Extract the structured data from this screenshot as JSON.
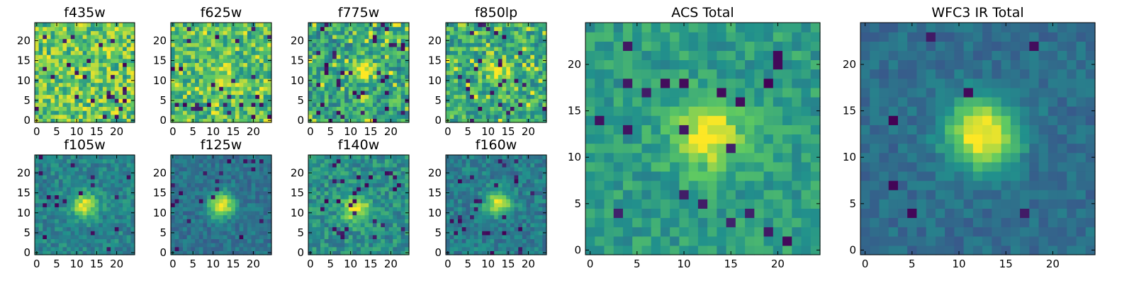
{
  "figure": {
    "grid_size": 25,
    "colormap": [
      "#440154",
      "#3b528b",
      "#21918c",
      "#5ec962",
      "#fde725"
    ]
  },
  "chart_data": [
    {
      "type": "heatmap",
      "title": "f435w",
      "x_ticks": [
        0,
        5,
        10,
        15,
        20
      ],
      "y_ticks": [
        0,
        5,
        10,
        15,
        20
      ],
      "xlim": [
        0,
        24
      ],
      "ylim": [
        0,
        24
      ],
      "peak_xy": [
        12,
        12
      ],
      "source_strength": 0.0,
      "background": 0.72,
      "noise": 0.24,
      "dark_pixel_fraction": 0.05,
      "bright_pixel_fraction": 0.1
    },
    {
      "type": "heatmap",
      "title": "f625w",
      "x_ticks": [
        0,
        5,
        10,
        15,
        20
      ],
      "y_ticks": [
        0,
        5,
        10,
        15,
        20
      ],
      "xlim": [
        0,
        24
      ],
      "ylim": [
        0,
        24
      ],
      "peak_xy": [
        12,
        12
      ],
      "source_strength": 0.22,
      "background": 0.68,
      "noise": 0.22,
      "dark_pixel_fraction": 0.05,
      "bright_pixel_fraction": 0.1
    },
    {
      "type": "heatmap",
      "title": "f775w",
      "x_ticks": [
        0,
        5,
        10,
        15,
        20
      ],
      "y_ticks": [
        0,
        5,
        10,
        15,
        20
      ],
      "xlim": [
        0,
        24
      ],
      "ylim": [
        0,
        24
      ],
      "peak_xy": [
        12.5,
        12.5
      ],
      "source_strength": 0.38,
      "background": 0.58,
      "noise": 0.22,
      "dark_pixel_fraction": 0.06,
      "bright_pixel_fraction": 0.06
    },
    {
      "type": "heatmap",
      "title": "f850lp",
      "x_ticks": [
        0,
        5,
        10,
        15,
        20
      ],
      "y_ticks": [
        0,
        5,
        10,
        15,
        20
      ],
      "xlim": [
        0,
        24
      ],
      "ylim": [
        0,
        24
      ],
      "peak_xy": [
        12.5,
        12.5
      ],
      "source_strength": 0.35,
      "background": 0.62,
      "noise": 0.22,
      "dark_pixel_fraction": 0.05,
      "bright_pixel_fraction": 0.07
    },
    {
      "type": "heatmap",
      "title": "f105w",
      "x_ticks": [
        0,
        5,
        10,
        15,
        20
      ],
      "y_ticks": [
        0,
        5,
        10,
        15,
        20
      ],
      "xlim": [
        0,
        24
      ],
      "ylim": [
        0,
        24
      ],
      "peak_xy": [
        12,
        12
      ],
      "source_strength": 0.55,
      "background": 0.45,
      "noise": 0.12,
      "dark_pixel_fraction": 0.04,
      "bright_pixel_fraction": 0.0
    },
    {
      "type": "heatmap",
      "title": "f125w",
      "x_ticks": [
        0,
        5,
        10,
        15,
        20
      ],
      "y_ticks": [
        0,
        5,
        10,
        15,
        20
      ],
      "xlim": [
        0,
        24
      ],
      "ylim": [
        0,
        24
      ],
      "peak_xy": [
        12,
        12
      ],
      "source_strength": 0.65,
      "background": 0.38,
      "noise": 0.1,
      "dark_pixel_fraction": 0.02,
      "bright_pixel_fraction": 0.0
    },
    {
      "type": "heatmap",
      "title": "f140w",
      "x_ticks": [
        0,
        5,
        10,
        15,
        20
      ],
      "y_ticks": [
        0,
        5,
        10,
        15,
        20
      ],
      "xlim": [
        0,
        24
      ],
      "ylim": [
        0,
        24
      ],
      "peak_xy": [
        11.5,
        11
      ],
      "source_strength": 0.5,
      "background": 0.5,
      "noise": 0.15,
      "dark_pixel_fraction": 0.04,
      "bright_pixel_fraction": 0.0
    },
    {
      "type": "heatmap",
      "title": "f160w",
      "x_ticks": [
        0,
        5,
        10,
        15,
        20
      ],
      "y_ticks": [
        0,
        5,
        10,
        15,
        20
      ],
      "xlim": [
        0,
        24
      ],
      "ylim": [
        0,
        24
      ],
      "peak_xy": [
        12.5,
        12.5
      ],
      "source_strength": 0.55,
      "background": 0.42,
      "noise": 0.12,
      "dark_pixel_fraction": 0.03,
      "bright_pixel_fraction": 0.0
    },
    {
      "type": "heatmap",
      "title": "ACS Total",
      "x_ticks": [
        0,
        5,
        10,
        15,
        20
      ],
      "y_ticks": [
        0,
        5,
        10,
        15,
        20
      ],
      "xlim": [
        0,
        24
      ],
      "ylim": [
        0,
        24
      ],
      "peak_xy": [
        12.5,
        12.5
      ],
      "source_strength": 0.45,
      "background": 0.55,
      "noise": 0.12,
      "dark_pixel_fraction": 0.03,
      "bright_pixel_fraction": 0.0
    },
    {
      "type": "heatmap",
      "title": "WFC3 IR Total",
      "x_ticks": [
        0,
        5,
        10,
        15,
        20
      ],
      "y_ticks": [
        0,
        5,
        10,
        15,
        20
      ],
      "xlim": [
        0,
        24
      ],
      "ylim": [
        0,
        24
      ],
      "peak_xy": [
        12.5,
        12.5
      ],
      "source_strength": 0.68,
      "background": 0.36,
      "noise": 0.08,
      "dark_pixel_fraction": 0.02,
      "bright_pixel_fraction": 0.0
    }
  ]
}
